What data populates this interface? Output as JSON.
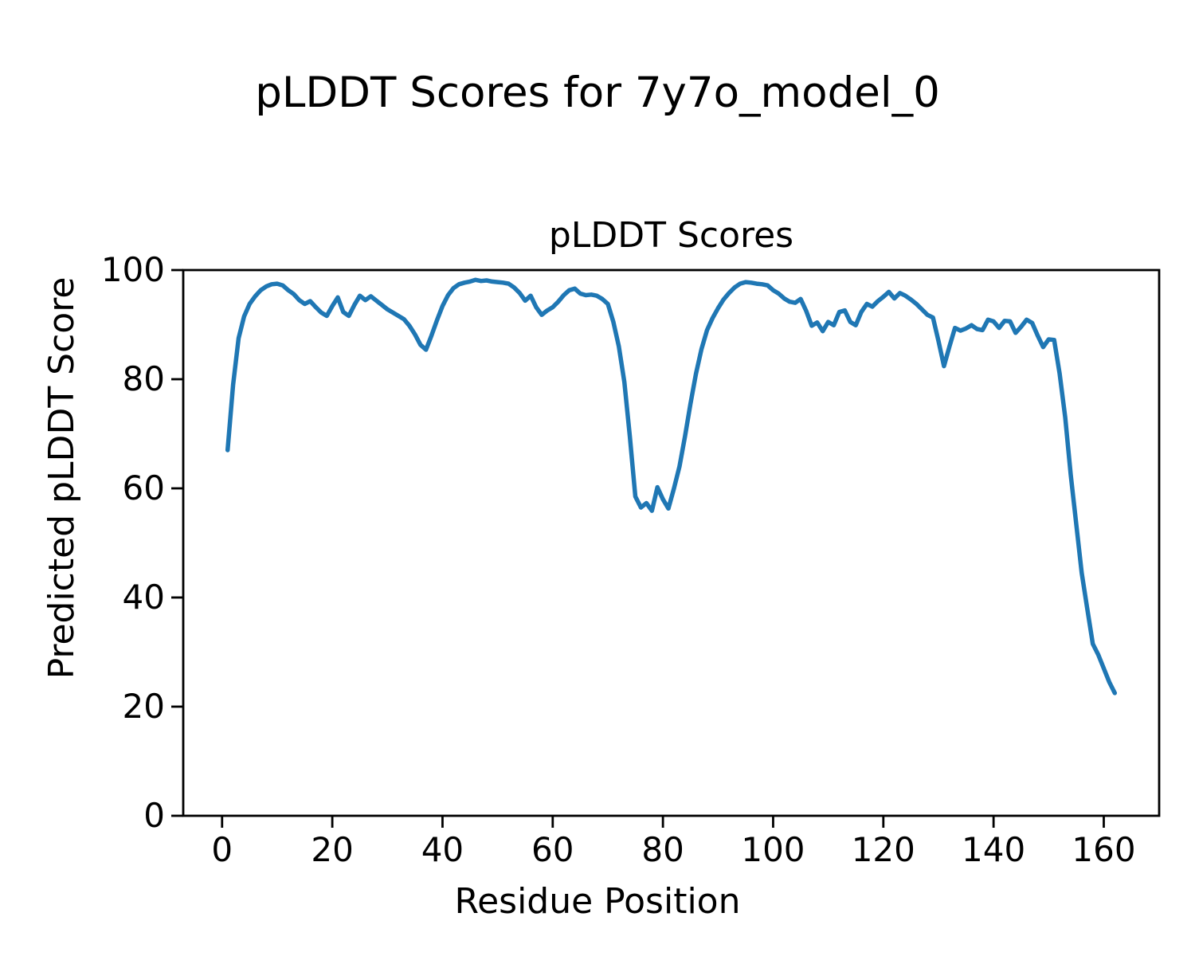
{
  "figure": {
    "suptitle": "pLDDT Scores for 7y7o_model_0",
    "background_color": "#ffffff",
    "axes_color": "#000000"
  },
  "chart_data": {
    "type": "line",
    "title": "pLDDT Scores",
    "xlabel": "Residue Position",
    "ylabel": "Predicted pLDDT Score",
    "x_start": 1,
    "x_ticks": [
      0,
      20,
      40,
      60,
      80,
      100,
      120,
      140,
      160
    ],
    "y_ticks": [
      0,
      20,
      40,
      60,
      80,
      100
    ],
    "xlim": [
      -7.05,
      170.05
    ],
    "ylim": [
      0,
      100
    ],
    "grid": false,
    "legend": "none",
    "line_width": 5.5,
    "series": [
      {
        "name": "pLDDT",
        "color": "#1f77b4",
        "values": [
          67.0,
          79.0,
          87.5,
          91.5,
          93.8,
          95.2,
          96.3,
          97.0,
          97.4,
          97.5,
          97.2,
          96.3,
          95.6,
          94.5,
          93.8,
          94.3,
          93.2,
          92.2,
          91.6,
          93.4,
          95.0,
          92.3,
          91.6,
          93.6,
          95.3,
          94.5,
          95.2,
          94.4,
          93.6,
          92.8,
          92.2,
          91.6,
          91.0,
          89.8,
          88.2,
          86.3,
          85.4,
          88.0,
          90.8,
          93.4,
          95.4,
          96.7,
          97.4,
          97.7,
          97.9,
          98.2,
          98.0,
          98.1,
          97.9,
          97.8,
          97.7,
          97.5,
          96.8,
          95.8,
          94.4,
          95.3,
          93.2,
          91.8,
          92.6,
          93.2,
          94.2,
          95.4,
          96.3,
          96.6,
          95.7,
          95.4,
          95.5,
          95.3,
          94.7,
          93.8,
          90.5,
          86.0,
          79.5,
          69.5,
          58.5,
          56.5,
          57.3,
          55.9,
          60.2,
          58.0,
          56.3,
          60.0,
          64.0,
          69.5,
          75.5,
          81.0,
          85.5,
          89.0,
          91.2,
          93.0,
          94.6,
          95.8,
          96.8,
          97.5,
          97.8,
          97.7,
          97.5,
          97.4,
          97.2,
          96.3,
          95.7,
          94.8,
          94.2,
          94.0,
          94.7,
          92.5,
          89.8,
          90.4,
          88.8,
          90.5,
          89.9,
          92.3,
          92.6,
          90.5,
          89.9,
          92.3,
          93.8,
          93.3,
          94.3,
          95.1,
          96.0,
          94.8,
          95.8,
          95.3,
          94.6,
          93.8,
          92.8,
          91.8,
          91.3,
          87.0,
          82.4,
          86.0,
          89.4,
          88.9,
          89.3,
          89.9,
          89.2,
          89.0,
          90.9,
          90.6,
          89.4,
          90.7,
          90.6,
          88.5,
          89.6,
          90.9,
          90.3,
          88.0,
          85.9,
          87.3,
          87.2,
          81.0,
          73.0,
          62.5,
          53.5,
          44.5,
          38.0,
          31.5,
          29.5,
          27.0,
          24.5,
          22.5
        ]
      }
    ]
  }
}
